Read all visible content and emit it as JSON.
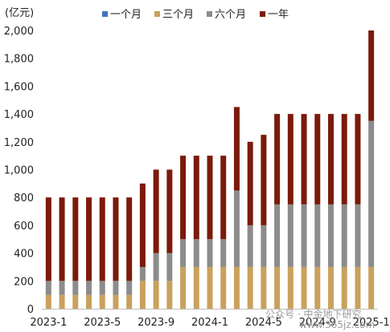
{
  "chart_data": {
    "type": "bar",
    "stacked": true,
    "unit_label": "(亿元)",
    "categories": [
      "2023-1",
      "2023-2",
      "2023-3",
      "2023-4",
      "2023-5",
      "2023-6",
      "2023-7",
      "2023-8",
      "2023-9",
      "2023-10",
      "2023-11",
      "2023-12",
      "2024-1",
      "2024-2",
      "2024-3",
      "2024-4",
      "2024-5",
      "2024-6",
      "2024-7",
      "2024-8",
      "2024-9",
      "2024-10",
      "2024-11",
      "2024-12",
      "2025-1"
    ],
    "x_tick_labels": [
      {
        "index": 0,
        "label": "2023-1"
      },
      {
        "index": 4,
        "label": "2023-5"
      },
      {
        "index": 8,
        "label": "2023-9"
      },
      {
        "index": 12,
        "label": "2024-1"
      },
      {
        "index": 16,
        "label": "2024-5"
      },
      {
        "index": 20,
        "label": "2024-9"
      },
      {
        "index": 24,
        "label": "2025-1"
      }
    ],
    "ylim": [
      0,
      2000
    ],
    "yticks": [
      0,
      200,
      400,
      600,
      800,
      1000,
      1200,
      1400,
      1600,
      1800,
      2000
    ],
    "ytick_labels": [
      "0",
      "200",
      "400",
      "600",
      "800",
      "1,000",
      "1,200",
      "1,400",
      "1,600",
      "1,800",
      "2,000"
    ],
    "legend_position": "top",
    "series": [
      {
        "name": "一个月",
        "color": "#4472c4",
        "values": [
          0,
          0,
          0,
          0,
          0,
          0,
          0,
          0,
          0,
          0,
          0,
          0,
          0,
          0,
          0,
          0,
          0,
          0,
          0,
          0,
          0,
          0,
          0,
          0,
          0
        ]
      },
      {
        "name": "三个月",
        "color": "#c9a15e",
        "values": [
          100,
          100,
          100,
          100,
          100,
          100,
          100,
          200,
          200,
          200,
          300,
          300,
          300,
          300,
          300,
          300,
          300,
          300,
          300,
          300,
          300,
          300,
          300,
          300,
          300
        ]
      },
      {
        "name": "六个月",
        "color": "#8c8c8c",
        "values": [
          100,
          100,
          100,
          100,
          100,
          100,
          100,
          100,
          200,
          200,
          200,
          200,
          200,
          200,
          550,
          300,
          300,
          450,
          450,
          450,
          450,
          450,
          450,
          450,
          1050
        ]
      },
      {
        "name": "一年",
        "color": "#7b1a0c",
        "values": [
          600,
          600,
          600,
          600,
          600,
          600,
          600,
          600,
          600,
          600,
          600,
          600,
          600,
          600,
          600,
          600,
          650,
          650,
          650,
          650,
          650,
          650,
          650,
          650,
          650
        ]
      }
    ]
  },
  "watermark": {
    "text": "公众号 · 中金地下研究",
    "site": "www.365jz.com"
  }
}
